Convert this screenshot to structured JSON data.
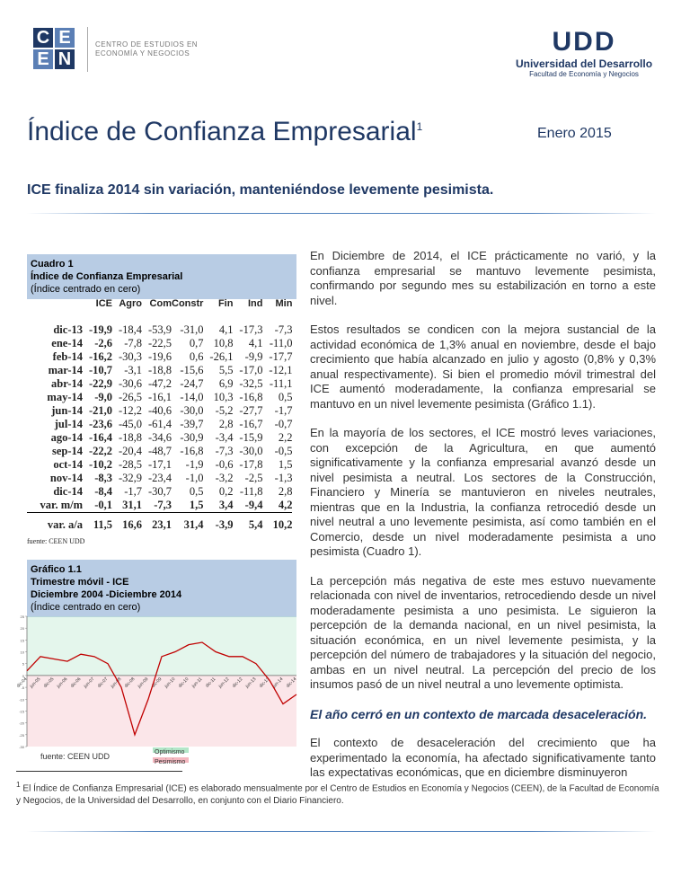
{
  "header": {
    "logo_letters": [
      "C",
      "E",
      "E",
      "N"
    ],
    "logo_text": [
      "CENTRO DE ESTUDIOS EN",
      "ECONOMÍA Y NEGOCIOS"
    ],
    "udd_mark": "UDD",
    "udd_name": "Universidad del Desarrollo",
    "udd_faculty": "Facultad de Economía y Negocios"
  },
  "title": "Índice de Confianza Empresarial",
  "title_note": "1",
  "date": "Enero 2015",
  "subtitle": "ICE finaliza 2014 sin variación, manteniéndose levemente pesimista.",
  "table": {
    "caption": [
      "Cuadro 1",
      "Índice de Confianza Empresarial",
      "(Índice centrado en cero)"
    ],
    "columns": [
      "ICE",
      "Agro",
      "Com",
      "Constr",
      "Fin",
      "Ind",
      "Min"
    ],
    "rows": [
      [
        "dic-13",
        "-19,9",
        "-18,4",
        "-53,9",
        "-31,0",
        "4,1",
        "-17,3",
        "-7,3"
      ],
      [
        "ene-14",
        "-2,6",
        "-7,8",
        "-22,5",
        "0,7",
        "10,8",
        "4,1",
        "-11,0"
      ],
      [
        "feb-14",
        "-16,2",
        "-30,3",
        "-19,6",
        "0,6",
        "-26,1",
        "-9,9",
        "-17,7"
      ],
      [
        "mar-14",
        "-10,7",
        "-3,1",
        "-18,8",
        "-15,6",
        "5,5",
        "-17,0",
        "-12,1"
      ],
      [
        "abr-14",
        "-22,9",
        "-30,6",
        "-47,2",
        "-24,7",
        "6,9",
        "-32,5",
        "-11,1"
      ],
      [
        "may-14",
        "-9,0",
        "-26,5",
        "-16,1",
        "-14,0",
        "10,3",
        "-16,8",
        "0,5"
      ],
      [
        "jun-14",
        "-21,0",
        "-12,2",
        "-40,6",
        "-30,0",
        "-5,2",
        "-27,7",
        "-1,7"
      ],
      [
        "jul-14",
        "-23,6",
        "-45,0",
        "-61,4",
        "-39,7",
        "2,8",
        "-16,7",
        "-0,7"
      ],
      [
        "ago-14",
        "-16,4",
        "-18,8",
        "-34,6",
        "-30,9",
        "-3,4",
        "-15,9",
        "2,2"
      ],
      [
        "sep-14",
        "-22,2",
        "-20,4",
        "-48,7",
        "-16,8",
        "-7,3",
        "-30,0",
        "-0,5"
      ],
      [
        "oct-14",
        "-10,2",
        "-28,5",
        "-17,1",
        "-1,9",
        "-0,6",
        "-17,8",
        "1,5"
      ],
      [
        "nov-14",
        "-8,3",
        "-32,9",
        "-23,4",
        "-1,0",
        "-3,2",
        "-2,5",
        "-1,3"
      ],
      [
        "dic-14",
        "-8,4",
        "-1,7",
        "-30,7",
        "0,5",
        "0,2",
        "-11,8",
        "2,8"
      ],
      [
        "var. m/m",
        "-0,1",
        "31,1",
        "-7,3",
        "1,5",
        "3,4",
        "-9,4",
        "4,2"
      ],
      [
        "var. a/a",
        "11,5",
        "16,6",
        "23,1",
        "31,4",
        "-3,9",
        "5,4",
        "10,2"
      ]
    ],
    "source": "fuente: CEEN UDD"
  },
  "chart_data": {
    "type": "line",
    "caption": [
      "Gráfico 1.1",
      "Trimestre móvil - ICE",
      "Diciembre 2004 -Diciembre 2014",
      "(Índice centrado en cero)"
    ],
    "categories": [
      "dic-04",
      "jun-05",
      "dic-05",
      "jun-06",
      "dic-06",
      "jun-07",
      "dic-07",
      "jun-08",
      "dic-08",
      "jun-09",
      "dic-09",
      "jun-10",
      "dic-10",
      "jun-11",
      "dic-11",
      "jun-12",
      "dic-12",
      "jun-13",
      "dic-13",
      "jun-14",
      "dic-14"
    ],
    "series": [
      {
        "color": "#c00000",
        "values": [
          2,
          8,
          7,
          6,
          9,
          8,
          5,
          -5,
          -25,
          -10,
          8,
          10,
          13,
          14,
          10,
          8,
          8,
          5,
          -2,
          -12,
          -8
        ]
      }
    ],
    "ylim": [
      -30,
      25
    ],
    "yticks": [
      25,
      20,
      15,
      10,
      5,
      0,
      -5,
      -10,
      -15,
      -20,
      -25,
      -30
    ],
    "legend": [
      {
        "label": "Optimismo",
        "color": "#b3e6c8"
      },
      {
        "label": "Pesimismo",
        "color": "#f4b8c0"
      }
    ],
    "source": "fuente: CEEN UDD"
  },
  "body": [
    "En Diciembre de 2014, el ICE prácticamente no varió, y la confianza empresarial se mantuvo levemente pesimista, confirmando por segundo mes su estabilización en torno a este nivel.",
    "Estos resultados se condicen con la mejora sustancial de la actividad económica de 1,3% anual en noviembre, desde el bajo crecimiento que había alcanzado en julio y agosto (0,8% y 0,3% anual respectivamente). Si bien el promedio móvil trimestral del ICE aumentó moderadamente, la confianza empresarial se mantuvo en un nivel levemente pesimista (Gráfico 1.1).",
    "En la mayoría de los sectores, el ICE mostró leves variaciones, con excepción de la Agricultura, en que aumentó significativamente y la confianza empresarial avanzó desde un nivel pesimista a neutral. Los sectores de la Construcción, Financiero y Minería se mantuvieron en niveles neutrales, mientras que en la Industria, la confianza retrocedió desde un nivel neutral a uno levemente pesimista, así como también en el Comercio, desde un nivel moderadamente pesimista a uno pesimista (Cuadro 1).",
    "La percepción más negativa de este mes estuvo nuevamente relacionada con nivel de inventarios, retrocediendo desde un nivel moderadamente pesimista a uno pesimista. Le siguieron la percepción de la demanda nacional, en un nivel pesimista, la situación económica, en un nivel levemente pesimista, y la percepción del número de trabajadores y la situación del negocio, ambas en un nivel neutral. La percepción del precio de los insumos pasó de un nivel neutral a uno levemente optimista."
  ],
  "section_heading": "El año cerró en un contexto de marcada desaceleración.",
  "body_2": "El contexto de desaceleración del crecimiento que ha experimentado la economía, ha afectado significativamente tanto las expectativas económicas, que en diciembre disminuyeron",
  "footnote": {
    "mark": "1",
    "text": "El Índice de Confianza Empresarial (ICE) es elaborado mensualmente por el Centro de Estudios en Economía y Negocios (CEEN), de la Facultad de Economía y Negocios, de la Universidad del Desarrollo, en conjunto con el Diario Financiero."
  }
}
